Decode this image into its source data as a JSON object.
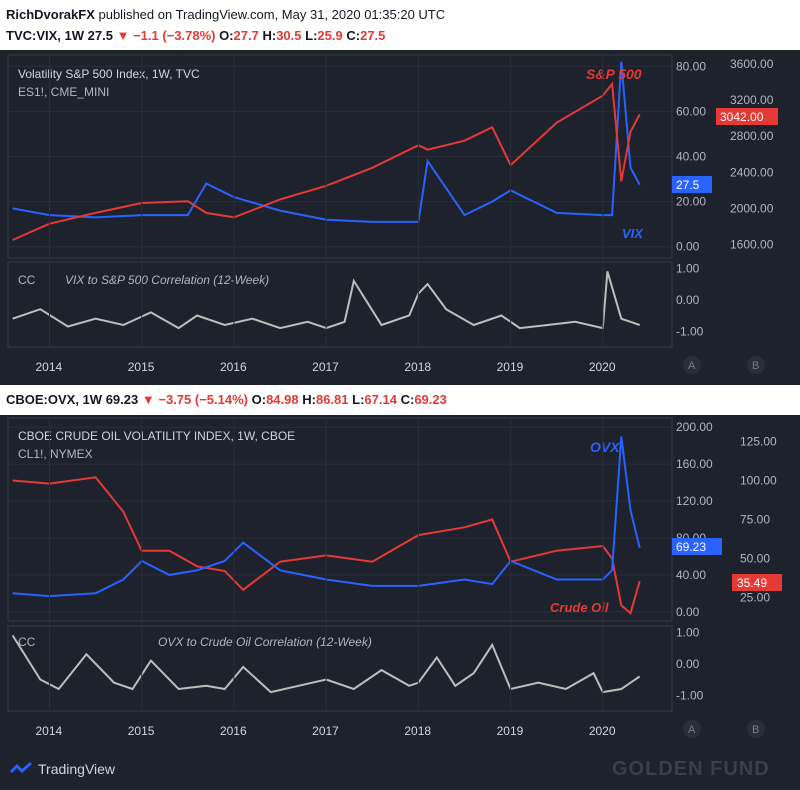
{
  "header": {
    "user": "RichDvorakFX",
    "published": " published on TradingView.com, May 31, 2020 01:35:20 UTC",
    "vix_ticker": "TVC:VIX, 1W",
    "vix_last": "27.5",
    "vix_change": "−1.1 (−3.78%)",
    "vix_ohlc": {
      "o": "27.7",
      "h": "30.5",
      "l": "25.9",
      "c": "27.5"
    }
  },
  "ovx_header": {
    "ticker": "CBOE:OVX, 1W",
    "last": "69.23",
    "change": "−3.75 (−5.14%)",
    "ohlc": {
      "o": "84.98",
      "h": "86.81",
      "l": "67.14",
      "c": "69.23"
    }
  },
  "labels": {
    "o": "O:",
    "h": "H:",
    "l": "L:",
    "c": "C:",
    "cc": "CC",
    "scale_a": "A",
    "scale_b": "B"
  },
  "colors": {
    "vix": "#2962ff",
    "spx": "#e53935",
    "ovx": "#2962ff",
    "oil": "#e53935",
    "corr": "#bdbdbd",
    "bg": "#1e222d",
    "grid": "#2a2e39"
  },
  "footer": {
    "brand": "TradingView",
    "watermark": "GOLDEN FUND"
  },
  "chart_data": [
    {
      "type": "line",
      "title": "Volatility S&P 500 Index, 1W, TVC",
      "subtitle": "ES1!, CME_MINI",
      "x_ticks": [
        "2014",
        "2015",
        "2016",
        "2017",
        "2018",
        "2019",
        "2020"
      ],
      "x": [
        2013.6,
        2014.0,
        2014.5,
        2015.0,
        2015.5,
        2015.7,
        2016.0,
        2016.5,
        2017.0,
        2017.5,
        2018.0,
        2018.1,
        2018.5,
        2018.8,
        2019.0,
        2019.5,
        2020.0,
        2020.1,
        2020.2,
        2020.3,
        2020.4
      ],
      "left_axis": {
        "ticks": [
          "80.00",
          "60.00",
          "40.00",
          "20.00",
          "0.00"
        ],
        "ylim": [
          -5,
          85
        ]
      },
      "right_axis": {
        "ticks": [
          "3600.00",
          "3200.00",
          "2800.00",
          "2400.00",
          "2000.00",
          "1600.00"
        ],
        "ylim": [
          1450,
          3700
        ]
      },
      "series": [
        {
          "name": "VIX",
          "axis": "left",
          "values": [
            17,
            14,
            13,
            14,
            14,
            28,
            22,
            16,
            12,
            11,
            11,
            38,
            14,
            20,
            25,
            15,
            14,
            14,
            82,
            35,
            27.5
          ]
        },
        {
          "name": "S&P 500",
          "axis": "right",
          "values": [
            1650,
            1830,
            1950,
            2060,
            2080,
            1950,
            1900,
            2100,
            2250,
            2450,
            2700,
            2650,
            2750,
            2900,
            2480,
            2950,
            3250,
            3380,
            2300,
            2850,
            3042
          ]
        }
      ],
      "last_labels": {
        "vix": "27.5",
        "spx": "3042.00"
      }
    },
    {
      "type": "line",
      "title": "VIX to S&P 500 Correlation (12-Week)",
      "x": [
        2013.6,
        2013.9,
        2014.2,
        2014.5,
        2014.8,
        2015.1,
        2015.4,
        2015.6,
        2015.9,
        2016.2,
        2016.5,
        2016.8,
        2017.0,
        2017.2,
        2017.3,
        2017.6,
        2017.9,
        2018.0,
        2018.1,
        2018.3,
        2018.6,
        2018.9,
        2019.1,
        2019.4,
        2019.7,
        2020.0,
        2020.05,
        2020.2,
        2020.4
      ],
      "values": [
        -0.6,
        -0.3,
        -0.85,
        -0.6,
        -0.8,
        -0.4,
        -0.9,
        -0.5,
        -0.8,
        -0.6,
        -0.9,
        -0.7,
        -0.9,
        -0.7,
        0.6,
        -0.8,
        -0.5,
        0.2,
        0.5,
        -0.3,
        -0.8,
        -0.5,
        -0.9,
        -0.8,
        -0.7,
        -0.9,
        0.9,
        -0.6,
        -0.8
      ],
      "ylim": [
        -1.5,
        1.2
      ],
      "y_ticks": [
        "1.00",
        "0.00",
        "-1.00"
      ]
    },
    {
      "type": "line",
      "title": "CBOE CRUDE OIL VOLATILITY INDEX, 1W, CBOE",
      "subtitle": "CL1!, NYMEX",
      "x_ticks": [
        "2014",
        "2015",
        "2016",
        "2017",
        "2018",
        "2019",
        "2020"
      ],
      "x": [
        2013.6,
        2014.0,
        2014.5,
        2014.8,
        2015.0,
        2015.3,
        2015.6,
        2015.9,
        2016.1,
        2016.5,
        2017.0,
        2017.5,
        2018.0,
        2018.5,
        2018.8,
        2019.0,
        2019.5,
        2020.0,
        2020.1,
        2020.2,
        2020.3,
        2020.4
      ],
      "left_axis": {
        "ticks": [
          "200.00",
          "160.00",
          "120.00",
          "80.00",
          "40.00",
          "0.00"
        ],
        "ylim": [
          -10,
          210
        ]
      },
      "right_axis": {
        "ticks": [
          "125.00",
          "100.00",
          "75.00",
          "50.00",
          "25.00"
        ],
        "ylim": [
          10,
          140
        ]
      },
      "series": [
        {
          "name": "OVX",
          "axis": "left",
          "values": [
            20,
            17,
            20,
            35,
            55,
            40,
            45,
            55,
            75,
            45,
            35,
            28,
            28,
            35,
            30,
            55,
            35,
            35,
            45,
            190,
            110,
            69.23
          ]
        },
        {
          "name": "Crude Oil",
          "axis": "right",
          "values": [
            100,
            98,
            102,
            80,
            55,
            55,
            45,
            42,
            30,
            48,
            52,
            48,
            65,
            70,
            75,
            48,
            55,
            58,
            50,
            20,
            15,
            35.49
          ]
        }
      ],
      "last_labels": {
        "ovx": "69.23",
        "oil": "35.49"
      }
    },
    {
      "type": "line",
      "title": "OVX to Crude Oil Correlation (12-Week)",
      "x": [
        2013.6,
        2013.9,
        2014.1,
        2014.4,
        2014.7,
        2014.9,
        2015.1,
        2015.4,
        2015.7,
        2015.9,
        2016.1,
        2016.4,
        2016.7,
        2017.0,
        2017.3,
        2017.6,
        2017.9,
        2018.0,
        2018.2,
        2018.4,
        2018.6,
        2018.8,
        2019.0,
        2019.3,
        2019.6,
        2019.9,
        2020.0,
        2020.2,
        2020.4
      ],
      "values": [
        0.9,
        -0.5,
        -0.8,
        0.3,
        -0.6,
        -0.8,
        0.1,
        -0.8,
        -0.7,
        -0.8,
        -0.1,
        -0.9,
        -0.7,
        -0.5,
        -0.8,
        -0.2,
        -0.7,
        -0.6,
        0.2,
        -0.7,
        -0.3,
        0.6,
        -0.8,
        -0.6,
        -0.8,
        -0.3,
        -0.9,
        -0.8,
        -0.4
      ],
      "ylim": [
        -1.5,
        1.2
      ],
      "y_ticks": [
        "1.00",
        "0.00",
        "-1.00"
      ]
    }
  ]
}
